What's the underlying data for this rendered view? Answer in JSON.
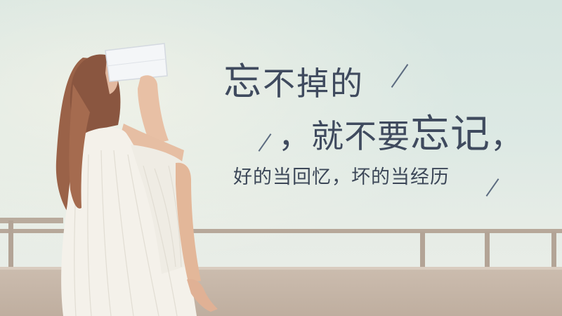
{
  "quote": {
    "line1_a": "忘",
    "line1_b": "不掉的",
    "line2_comma": "，",
    "line2_a": "就不要",
    "line2_b": "忘记",
    "line2_end": "，",
    "line3": "好的当回忆，坏的当经历"
  },
  "colors": {
    "text": "#3f4a5e",
    "sky": "#d6e5e0",
    "wall": "#c4b4a5",
    "dress": "#f4f1ea",
    "hair": "#9a6248"
  }
}
